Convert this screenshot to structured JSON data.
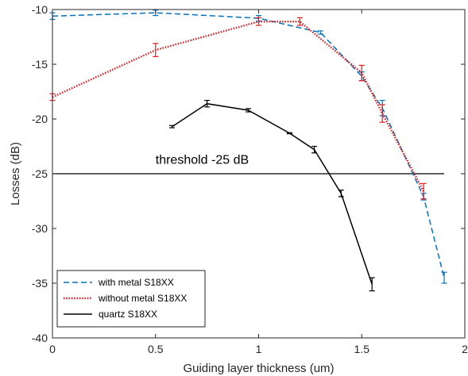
{
  "chart_data": {
    "type": "line",
    "title": "",
    "xlabel": "Guiding layer thickness (um)",
    "ylabel": "Losses (dB)",
    "xlim": [
      0,
      2
    ],
    "ylim": [
      -40,
      -10
    ],
    "xticks": [
      0,
      0.5,
      1,
      1.5,
      2
    ],
    "yticks": [
      -40,
      -35,
      -30,
      -25,
      -20,
      -15,
      -10
    ],
    "grid": false,
    "legend_position": "bottom-left",
    "series": [
      {
        "name": "with metal S18XX",
        "color": "#0072BD",
        "line_style": "dashed",
        "points": [
          {
            "x": 0.0,
            "y": -10.6,
            "err": 0.3
          },
          {
            "x": 0.5,
            "y": -10.3,
            "err": 0.25
          },
          {
            "x": 1.0,
            "y": -10.8,
            "err": 0.25
          },
          {
            "x": 1.3,
            "y": -12.1,
            "err": 0.15
          },
          {
            "x": 1.5,
            "y": -16.1,
            "err": 0.4
          },
          {
            "x": 1.6,
            "y": -19.0,
            "err": 0.7
          },
          {
            "x": 1.8,
            "y": -27.1,
            "err": 0.3
          },
          {
            "x": 1.9,
            "y": -34.5,
            "err": 0.5
          }
        ]
      },
      {
        "name": "without metal S18XX",
        "color": "#E8191C",
        "line_style": "dotted",
        "points": [
          {
            "x": 0.0,
            "y": -18.0,
            "err": 0.3
          },
          {
            "x": 0.5,
            "y": -13.7,
            "err": 0.6
          },
          {
            "x": 1.0,
            "y": -11.1,
            "err": 0.35
          },
          {
            "x": 1.2,
            "y": -11.1,
            "err": 0.35
          },
          {
            "x": 1.5,
            "y": -15.8,
            "err": 0.7
          },
          {
            "x": 1.6,
            "y": -19.5,
            "err": 0.8
          },
          {
            "x": 1.8,
            "y": -26.6,
            "err": 0.7
          }
        ]
      },
      {
        "name": "quartz S18XX",
        "color": "#000000",
        "line_style": "solid",
        "points": [
          {
            "x": 0.58,
            "y": -20.7,
            "err": 0.1
          },
          {
            "x": 0.75,
            "y": -18.6,
            "err": 0.3
          },
          {
            "x": 0.95,
            "y": -19.2,
            "err": 0.15
          },
          {
            "x": 1.15,
            "y": -21.3,
            "err": 0.05
          },
          {
            "x": 1.27,
            "y": -22.8,
            "err": 0.3
          },
          {
            "x": 1.4,
            "y": -26.8,
            "err": 0.3
          },
          {
            "x": 1.55,
            "y": -35.1,
            "err": 0.6
          }
        ]
      }
    ],
    "reference_line": {
      "y": -25,
      "x_range": [
        0,
        1.9
      ],
      "color": "#000000"
    },
    "annotations": [
      {
        "text": "threshold -25 dB",
        "x": 0.5,
        "y": -24.1
      }
    ]
  }
}
